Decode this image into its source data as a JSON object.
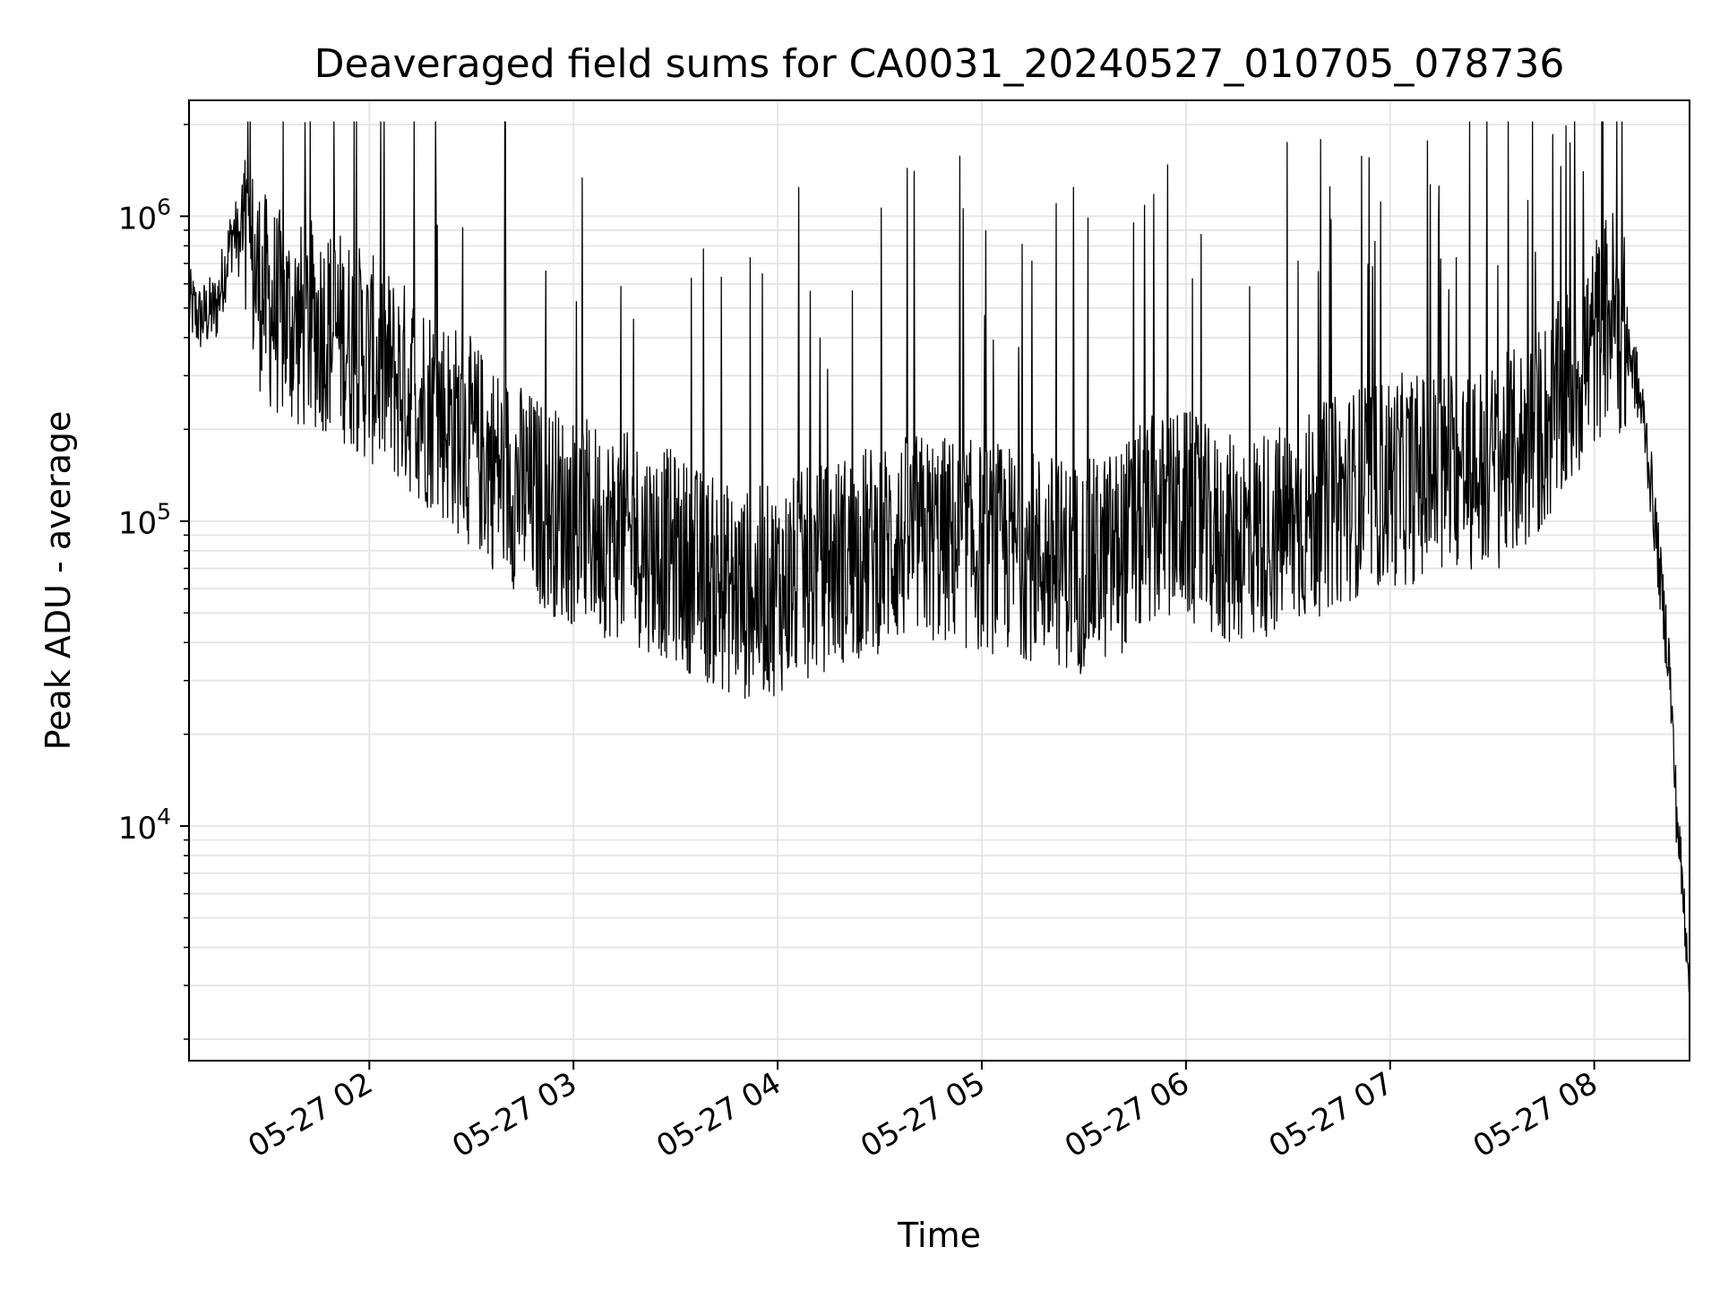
{
  "chart_data": {
    "type": "line",
    "title": "Deaveraged field sums for CA0031_20240527_010705_078736",
    "xlabel": "Time",
    "ylabel": "Peak ADU - average",
    "yscale": "log",
    "ylim": [
      1700,
      2400000
    ],
    "xlim": [
      "2024-05-27 01:07",
      "2024-05-27 08:28"
    ],
    "grid": true,
    "line_color": "#000000",
    "grid_color": "#e6e6e6",
    "x_ticks": [
      {
        "t": "2024-05-27 02:00",
        "label": "05-27 02"
      },
      {
        "t": "2024-05-27 03:00",
        "label": "05-27 03"
      },
      {
        "t": "2024-05-27 04:00",
        "label": "05-27 04"
      },
      {
        "t": "2024-05-27 05:00",
        "label": "05-27 05"
      },
      {
        "t": "2024-05-27 06:00",
        "label": "05-27 06"
      },
      {
        "t": "2024-05-27 07:00",
        "label": "05-27 07"
      },
      {
        "t": "2024-05-27 08:00",
        "label": "05-27 08"
      }
    ],
    "y_ticks": [
      {
        "value": 10000,
        "base": "10",
        "exp": "4"
      },
      {
        "value": 100000,
        "base": "10",
        "exp": "5"
      },
      {
        "value": 1000000,
        "base": "10",
        "exp": "6"
      }
    ],
    "series": [
      {
        "points": [
          [
            "2024-05-27 01:07",
            520000
          ],
          [
            "2024-05-27 01:10",
            460000
          ],
          [
            "2024-05-27 01:15",
            500000
          ],
          [
            "2024-05-27 01:20",
            900000
          ],
          [
            "2024-05-27 01:25",
            700000
          ],
          [
            "2024-05-27 01:30",
            520000
          ],
          [
            "2024-05-27 01:35",
            460000
          ],
          [
            "2024-05-27 01:40",
            430000
          ],
          [
            "2024-05-27 01:45",
            440000
          ],
          [
            "2024-05-27 01:50",
            420000
          ],
          [
            "2024-05-27 01:55",
            380000
          ],
          [
            "2024-05-27 02:00",
            340000
          ],
          [
            "2024-05-27 02:10",
            280000
          ],
          [
            "2024-05-27 02:20",
            230000
          ],
          [
            "2024-05-27 02:30",
            180000
          ],
          [
            "2024-05-27 02:40",
            140000
          ],
          [
            "2024-05-27 02:50",
            115000
          ],
          [
            "2024-05-27 03:00",
            100000
          ],
          [
            "2024-05-27 03:10",
            92000
          ],
          [
            "2024-05-27 03:20",
            85000
          ],
          [
            "2024-05-27 03:30",
            76000
          ],
          [
            "2024-05-27 03:40",
            64000
          ],
          [
            "2024-05-27 03:50",
            57000
          ],
          [
            "2024-05-27 04:00",
            60000
          ],
          [
            "2024-05-27 04:10",
            68000
          ],
          [
            "2024-05-27 04:20",
            76000
          ],
          [
            "2024-05-27 04:30",
            82000
          ],
          [
            "2024-05-27 04:40",
            88000
          ],
          [
            "2024-05-27 04:50",
            86000
          ],
          [
            "2024-05-27 05:00",
            82000
          ],
          [
            "2024-05-27 05:10",
            80000
          ],
          [
            "2024-05-27 05:20",
            75000
          ],
          [
            "2024-05-27 05:30",
            70000
          ],
          [
            "2024-05-27 05:40",
            80000
          ],
          [
            "2024-05-27 05:50",
            100000
          ],
          [
            "2024-05-27 06:00",
            105000
          ],
          [
            "2024-05-27 06:10",
            85000
          ],
          [
            "2024-05-27 06:20",
            90000
          ],
          [
            "2024-05-27 06:30",
            95000
          ],
          [
            "2024-05-27 06:40",
            110000
          ],
          [
            "2024-05-27 06:50",
            125000
          ],
          [
            "2024-05-27 07:00",
            135000
          ],
          [
            "2024-05-27 07:10",
            140000
          ],
          [
            "2024-05-27 07:20",
            145000
          ],
          [
            "2024-05-27 07:30",
            150000
          ],
          [
            "2024-05-27 07:40",
            175000
          ],
          [
            "2024-05-27 07:50",
            240000
          ],
          [
            "2024-05-27 08:00",
            380000
          ],
          [
            "2024-05-27 08:05",
            500000
          ],
          [
            "2024-05-27 08:08",
            420000
          ],
          [
            "2024-05-27 08:12",
            300000
          ],
          [
            "2024-05-27 08:15",
            200000
          ],
          [
            "2024-05-27 08:18",
            95000
          ],
          [
            "2024-05-27 08:20",
            55000
          ],
          [
            "2024-05-27 08:22",
            35000
          ],
          [
            "2024-05-27 08:24",
            12000
          ],
          [
            "2024-05-27 08:26",
            6000
          ],
          [
            "2024-05-27 08:28",
            3500
          ]
        ]
      }
    ]
  }
}
